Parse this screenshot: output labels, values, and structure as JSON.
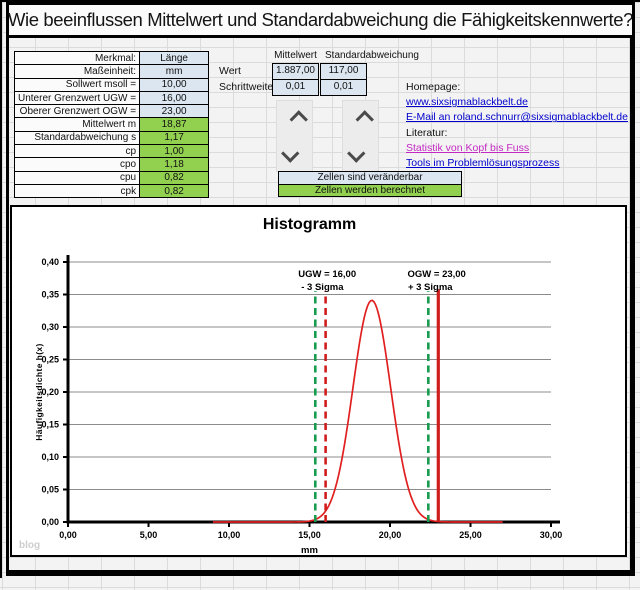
{
  "title": "Wie beeinflussen Mittelwert und Standardabweichung die Fähigkeitskennwerte?",
  "param_table": {
    "rows": [
      {
        "label": "Merkmal:",
        "value": "Länge",
        "kind": "input"
      },
      {
        "label": "Maßeinheit:",
        "value": "mm",
        "kind": "input"
      },
      {
        "label": "Sollwert msoll =",
        "value": "10,00",
        "kind": "input"
      },
      {
        "label": "Unterer Grenzwert UGW =",
        "value": "16,00",
        "kind": "input"
      },
      {
        "label": "Oberer Grenzwert OGW =",
        "value": "23,00",
        "kind": "input"
      },
      {
        "label": "Mittelwert m",
        "value": "18,87",
        "kind": "computed"
      },
      {
        "label": "Standardabweichung s",
        "value": "1,17",
        "kind": "computed"
      },
      {
        "label": "cp",
        "value": "1,00",
        "kind": "computed"
      },
      {
        "label": "cpo",
        "value": "1,18",
        "kind": "computed"
      },
      {
        "label": "cpu",
        "value": "0,82",
        "kind": "computed"
      },
      {
        "label": "cpk",
        "value": "0,82",
        "kind": "computed"
      }
    ]
  },
  "controls": {
    "col_headers": [
      "Mittelwert",
      "Standardabweichung"
    ],
    "row_labels": [
      "Wert",
      "Schrittweite"
    ],
    "wert": [
      "1.887,00",
      "117,00"
    ],
    "schrittweite": [
      "0,01",
      "0,01"
    ]
  },
  "legend": {
    "editable": "Zellen sind veränderbar",
    "computed": "Zellen werden berechnet"
  },
  "links": {
    "homepage_label": "Homepage:",
    "homepage": "www.sixsigmablackbelt.de",
    "email": "E-Mail an roland.schnurr@sixsigmablackbelt.de",
    "literatur_label": "Literatur:",
    "book1": "Statistik von Kopf bis Fuss",
    "book2": "Tools im Problemlösungsprozess"
  },
  "colors": {
    "cell_editable": "#dce6f1",
    "cell_computed": "#92d050",
    "link_blue": "#0000cc",
    "link_visited": "#c328c3",
    "curve_red": "#e02020",
    "limit_red": "#cf1d1d",
    "sigma_green": "#169b4f"
  },
  "chart_data": {
    "type": "line",
    "title": "Histogramm",
    "xlabel": "mm",
    "ylabel": "Häufigkeitsdichte h(x)",
    "xlim": [
      0,
      30
    ],
    "ylim": [
      0,
      0.4
    ],
    "grid": true,
    "legend_position": "none",
    "x_ticks": [
      "0,00",
      "5,00",
      "10,00",
      "15,00",
      "20,00",
      "25,00",
      "30,00"
    ],
    "y_ticks": [
      "0,00",
      "0,05",
      "0,10",
      "0,15",
      "0,20",
      "0,25",
      "0,30",
      "0,35",
      "0,40"
    ],
    "curve": {
      "name": "Normalverteilungsdichte",
      "mean": 18.87,
      "sigma": 1.17,
      "peak": 0.341,
      "x_range": [
        9,
        27
      ],
      "color": "#e02020"
    },
    "vlines": [
      {
        "name": "minus-3-sigma-line",
        "x": 15.36,
        "style": "dashed",
        "color": "#169b4f",
        "top": 0.355
      },
      {
        "name": "ugw-line",
        "x": 16.0,
        "style": "dashed",
        "color": "#cf1d1d",
        "top": 0.355
      },
      {
        "name": "plus-3-sigma-line",
        "x": 22.38,
        "style": "dashed",
        "color": "#169b4f",
        "top": 0.355
      },
      {
        "name": "ogw-line",
        "x": 23.0,
        "style": "solid",
        "color": "#cf1d1d",
        "top": 0.358
      }
    ],
    "annotations": [
      {
        "text": "UGW = 16,00",
        "x": 16.1,
        "row": 0
      },
      {
        "text": "- 3 Sigma",
        "x": 15.8,
        "row": 1
      },
      {
        "text": "OGW = 23,00",
        "x": 22.9,
        "row": 0
      },
      {
        "text": "+ 3 Sigma",
        "x": 22.5,
        "row": 1
      }
    ],
    "watermark": "blog"
  }
}
